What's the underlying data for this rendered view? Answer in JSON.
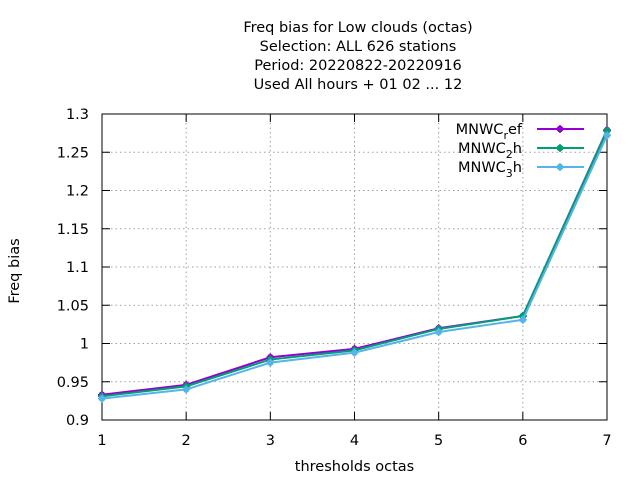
{
  "chart_data": {
    "type": "line",
    "title_lines": [
      "Freq bias  for Low clouds (octas)",
      "Selection: ALL    626 stations",
      "Period: 20220822-20220916",
      "Used  All hours + 01 02 ... 12"
    ],
    "xlabel": "thresholds octas",
    "ylabel": "Freq bias",
    "x": [
      1,
      2,
      3,
      4,
      5,
      6,
      7
    ],
    "xlim": [
      1,
      7
    ],
    "ylim": [
      0.9,
      1.3
    ],
    "xticks": [
      "1",
      "2",
      "3",
      "4",
      "5",
      "6",
      "7"
    ],
    "yticks": [
      {
        "value": 0.9,
        "label": "0.9"
      },
      {
        "value": 0.95,
        "label": "0.95"
      },
      {
        "value": 1.0,
        "label": "1"
      },
      {
        "value": 1.05,
        "label": "1.05"
      },
      {
        "value": 1.1,
        "label": "1.1"
      },
      {
        "value": 1.15,
        "label": "1.15"
      },
      {
        "value": 1.2,
        "label": "1.2"
      },
      {
        "value": 1.25,
        "label": "1.25"
      },
      {
        "value": 1.3,
        "label": "1.3"
      }
    ],
    "grid": true,
    "legend_position": "top-right",
    "series": [
      {
        "name_base": "MNWC",
        "name_sub": "r",
        "name_tail": "ef",
        "color": "#9400d3",
        "values": [
          0.933,
          0.946,
          0.982,
          0.993,
          1.02,
          1.036,
          1.279
        ]
      },
      {
        "name_base": "MNWC",
        "name_sub": "2",
        "name_tail": "h",
        "color": "#009e73",
        "values": [
          0.931,
          0.944,
          0.979,
          0.991,
          1.019,
          1.036,
          1.278
        ]
      },
      {
        "name_base": "MNWC",
        "name_sub": "3",
        "name_tail": "h",
        "color": "#56b4e9",
        "values": [
          0.928,
          0.94,
          0.975,
          0.988,
          1.015,
          1.031,
          1.272
        ]
      }
    ]
  }
}
